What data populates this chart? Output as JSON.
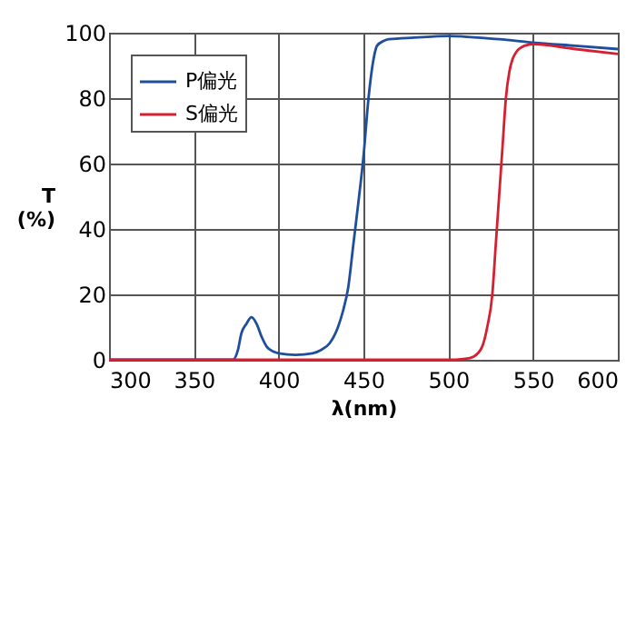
{
  "chart_data": {
    "type": "line",
    "xlabel": "λ(nm)",
    "ylabel": "T\n(%)",
    "xlim": [
      300,
      600
    ],
    "xticks": [
      300,
      350,
      400,
      450,
      500,
      550,
      600
    ],
    "ylim": [
      0,
      100
    ],
    "yticks": [
      0,
      20,
      40,
      60,
      80,
      100
    ],
    "grid": true,
    "legend": "top left",
    "marker": "none",
    "line_style": "solid",
    "series": [
      {
        "name": "P偏光",
        "color": "#1f4e9c",
        "x": [
          300,
          350,
          373,
          376,
          378,
          381,
          384,
          387,
          390,
          393,
          397,
          400,
          410,
          420,
          425,
          430,
          435,
          438,
          441,
          444,
          447,
          450,
          453,
          456,
          458,
          462,
          465,
          480,
          500,
          530,
          550,
          575,
          600
        ],
        "values": [
          0,
          0,
          0,
          3,
          8,
          11,
          13,
          11,
          7,
          4,
          2.5,
          2,
          1.5,
          2,
          3,
          5,
          10,
          15,
          22,
          35,
          48,
          62,
          80,
          92,
          96,
          97.5,
          98,
          98.5,
          99,
          98,
          97,
          96,
          95
        ]
      },
      {
        "name": "S偏光",
        "color": "#d62030",
        "x": [
          300,
          400,
          500,
          510,
          515,
          520,
          523,
          526,
          528,
          530,
          532,
          534,
          536,
          538,
          540,
          545,
          550,
          575,
          600
        ],
        "values": [
          0,
          0,
          0,
          0.3,
          1,
          4,
          10,
          20,
          35,
          50,
          65,
          80,
          88,
          92,
          94,
          96,
          96.5,
          95,
          93.5
        ]
      }
    ]
  }
}
